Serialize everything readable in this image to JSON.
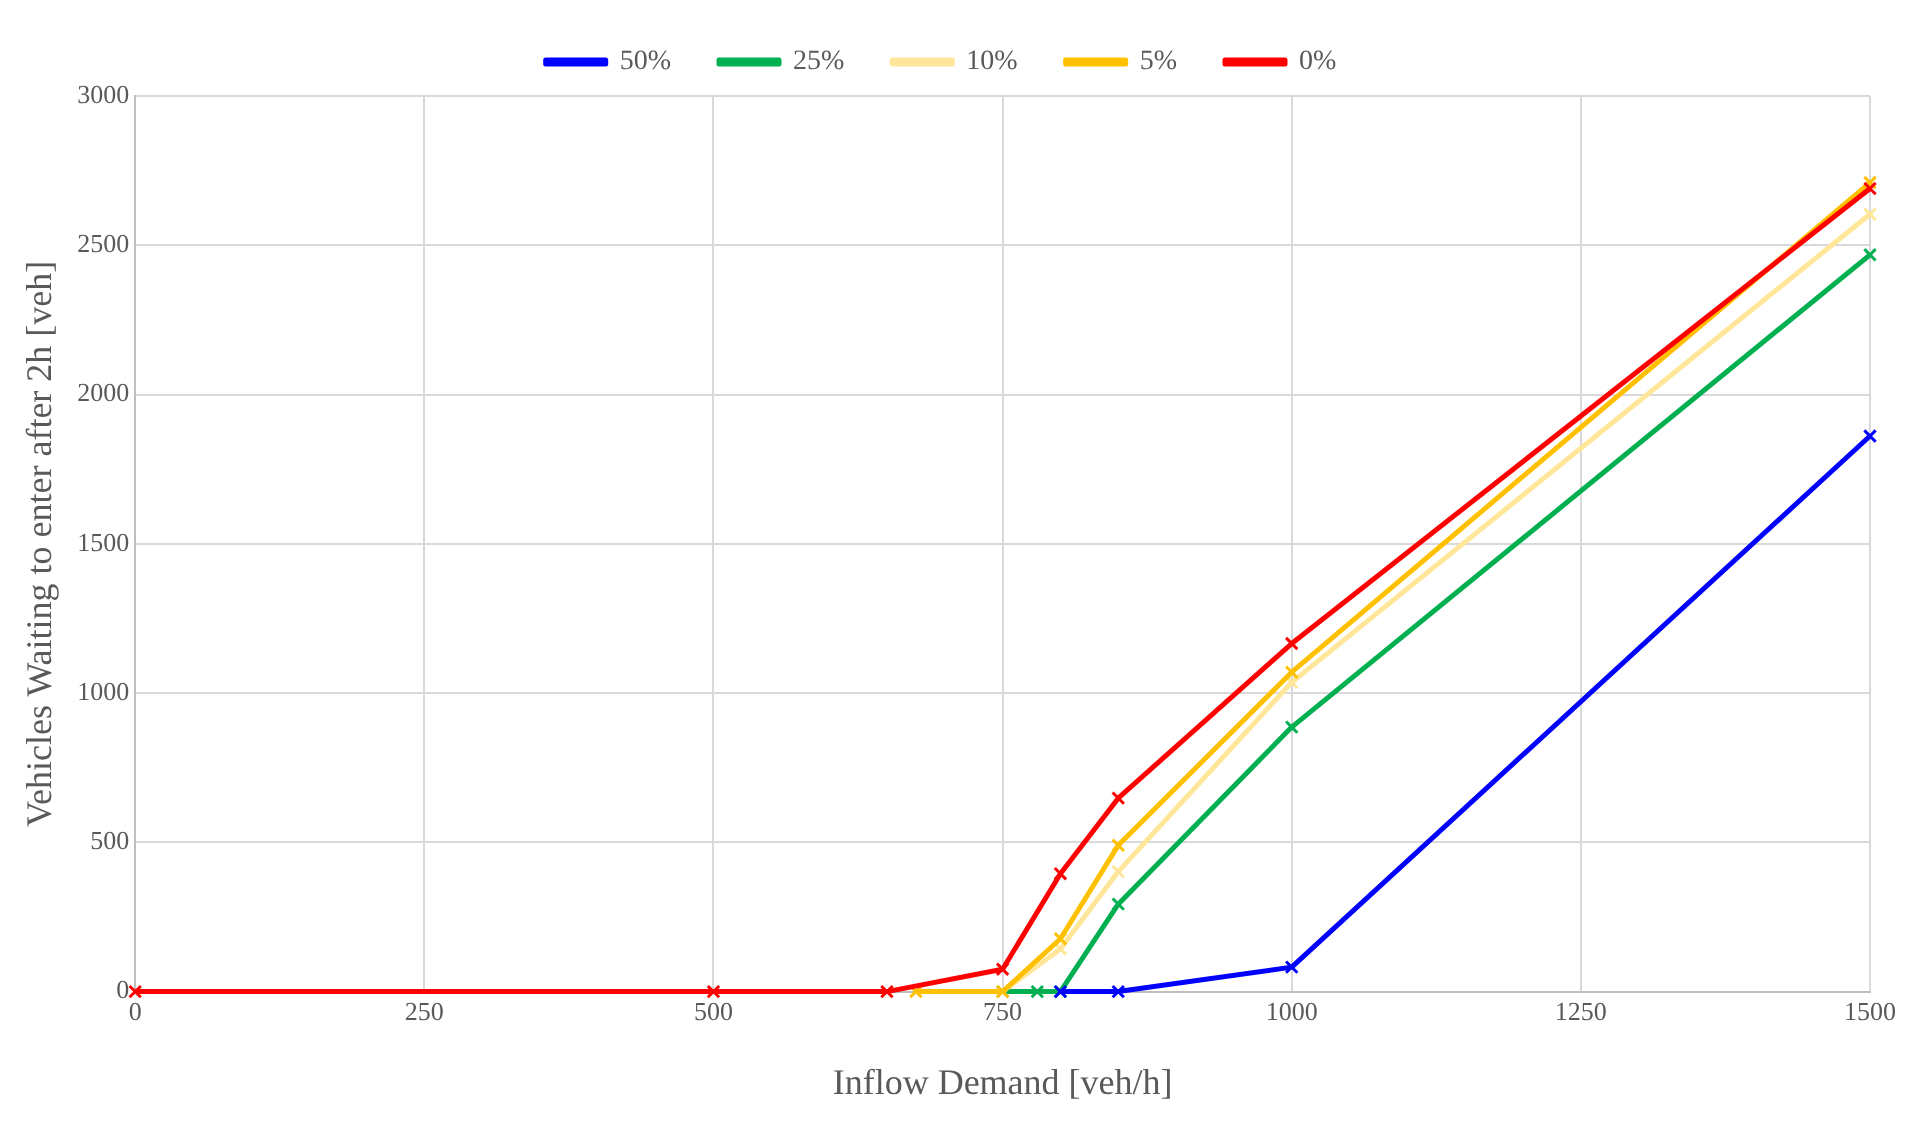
{
  "chart_data": {
    "type": "line",
    "xlabel": "Inflow Demand [veh/h]",
    "ylabel": "Vehicles Waiting to enter after 2h [veh]",
    "xlim": [
      0,
      1500
    ],
    "xticks": [
      0,
      250,
      500,
      750,
      1000,
      1250,
      1500
    ],
    "ylim": [
      0,
      3000
    ],
    "yticks": [
      0,
      500,
      1000,
      1500,
      2000,
      2500,
      3000
    ],
    "grid": true,
    "legend": "top",
    "marker": "cross",
    "line_style": "solid",
    "series": [
      {
        "name": "50%",
        "color": "#0000ff",
        "x": [
          800,
          850,
          1000,
          1500
        ],
        "values": [
          0,
          0,
          82,
          1861
        ]
      },
      {
        "name": "25%",
        "color": "#00b050",
        "x": [
          750,
          780,
          800,
          850,
          1000,
          1500
        ],
        "values": [
          0,
          0,
          0,
          293,
          886,
          2468
        ]
      },
      {
        "name": "10%",
        "color": "#ffe699",
        "x": [
          750,
          800,
          850,
          1000,
          1500
        ],
        "values": [
          0,
          143,
          402,
          1036,
          2604
        ]
      },
      {
        "name": "5%",
        "color": "#ffc000",
        "x": [
          675,
          750,
          800,
          850,
          1000,
          1500
        ],
        "values": [
          0,
          0,
          177,
          490,
          1070,
          2710
        ]
      },
      {
        "name": "0%",
        "color": "#ff0000",
        "x": [
          0,
          500,
          650,
          750,
          800,
          850,
          1000,
          1500
        ],
        "values": [
          0,
          0,
          0,
          75,
          395,
          648,
          1166,
          2690
        ]
      }
    ]
  }
}
